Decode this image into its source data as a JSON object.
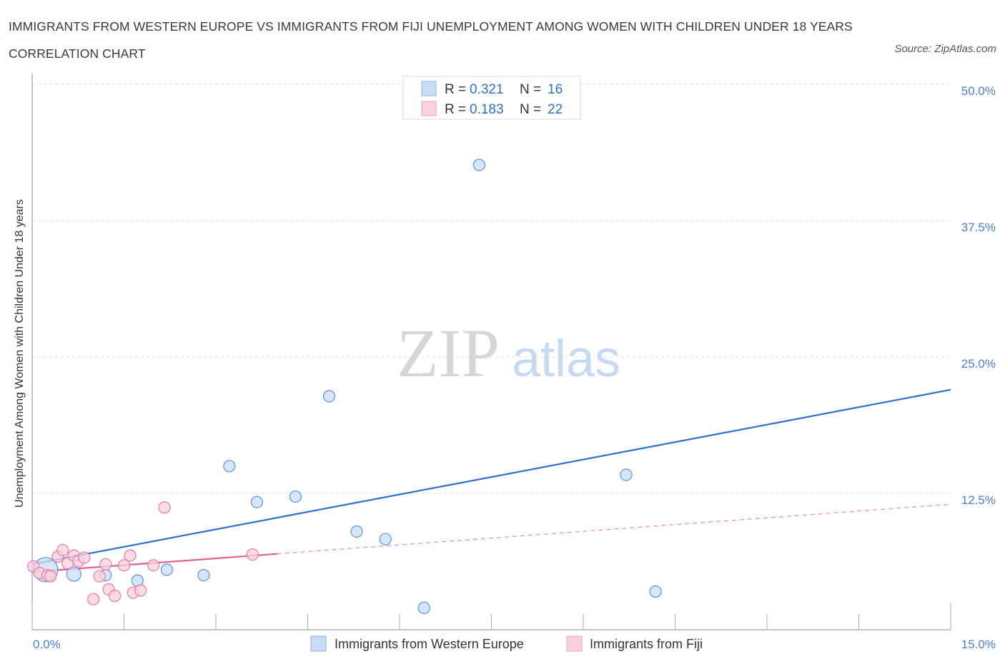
{
  "chart_data": {
    "type": "scatter",
    "title": "IMMIGRANTS FROM WESTERN EUROPE VS IMMIGRANTS FROM FIJI UNEMPLOYMENT AMONG WOMEN WITH CHILDREN UNDER 18 YEARS CORRELATION CHART",
    "source": "Source: ZipAtlas.com",
    "ylabel": "Unemployment Among Women with Children Under 18 years",
    "xlim": [
      0,
      15
    ],
    "ylim": [
      0,
      50
    ],
    "x_tick_labels": [
      "0.0%",
      "15.0%"
    ],
    "y_ticks": [
      12.5,
      25,
      37.5,
      50
    ],
    "y_tick_labels": [
      "12.5%",
      "25.0%",
      "37.5%",
      "50.0%"
    ],
    "watermark": {
      "zip": "ZIP",
      "atlas": "atlas"
    },
    "legend": {
      "r_label": "R = ",
      "n_label": "N = ",
      "entries": [
        {
          "r": "0.321",
          "n": "16"
        },
        {
          "r": "0.183",
          "n": "22"
        }
      ]
    },
    "series": [
      {
        "name": "Immigrants from Western Europe",
        "color": "#5b8fe0",
        "fill": "#c9dcf6",
        "trend": {
          "x": [
            0,
            15
          ],
          "y": [
            6.0,
            22.0
          ],
          "dashed_from": null
        },
        "points": [
          {
            "x": 0.22,
            "y": 5.5,
            "size": "large"
          },
          {
            "x": 0.68,
            "y": 5.1,
            "size": "medium"
          },
          {
            "x": 1.2,
            "y": 5.0
          },
          {
            "x": 1.72,
            "y": 4.5
          },
          {
            "x": 2.2,
            "y": 5.5
          },
          {
            "x": 2.8,
            "y": 5.0
          },
          {
            "x": 3.22,
            "y": 15.0
          },
          {
            "x": 3.67,
            "y": 11.7
          },
          {
            "x": 4.3,
            "y": 12.2
          },
          {
            "x": 4.85,
            "y": 21.4
          },
          {
            "x": 5.3,
            "y": 9.0
          },
          {
            "x": 5.77,
            "y": 8.3
          },
          {
            "x": 6.4,
            "y": 2.0
          },
          {
            "x": 7.3,
            "y": 42.6
          },
          {
            "x": 9.7,
            "y": 14.2
          },
          {
            "x": 10.18,
            "y": 3.5
          }
        ]
      },
      {
        "name": "Immigrants from Fiji",
        "color": "#e87aa0",
        "fill": "#f9d0dd",
        "trend": {
          "x": [
            0,
            15
          ],
          "y": [
            5.3,
            11.5
          ],
          "solid_until": 4.0
        },
        "points": [
          {
            "x": 0.02,
            "y": 5.8
          },
          {
            "x": 0.12,
            "y": 5.2
          },
          {
            "x": 0.25,
            "y": 5.0
          },
          {
            "x": 0.3,
            "y": 4.9
          },
          {
            "x": 0.42,
            "y": 6.7
          },
          {
            "x": 0.5,
            "y": 7.3
          },
          {
            "x": 0.58,
            "y": 6.1
          },
          {
            "x": 0.68,
            "y": 6.8
          },
          {
            "x": 0.76,
            "y": 6.3
          },
          {
            "x": 0.85,
            "y": 6.6
          },
          {
            "x": 1.0,
            "y": 2.8
          },
          {
            "x": 1.1,
            "y": 4.9
          },
          {
            "x": 1.2,
            "y": 6.0
          },
          {
            "x": 1.25,
            "y": 3.7
          },
          {
            "x": 1.35,
            "y": 3.1
          },
          {
            "x": 1.5,
            "y": 5.9
          },
          {
            "x": 1.6,
            "y": 6.8
          },
          {
            "x": 1.65,
            "y": 3.4
          },
          {
            "x": 1.77,
            "y": 3.6
          },
          {
            "x": 1.98,
            "y": 5.9
          },
          {
            "x": 2.16,
            "y": 11.2
          },
          {
            "x": 3.6,
            "y": 6.9
          }
        ]
      }
    ]
  }
}
